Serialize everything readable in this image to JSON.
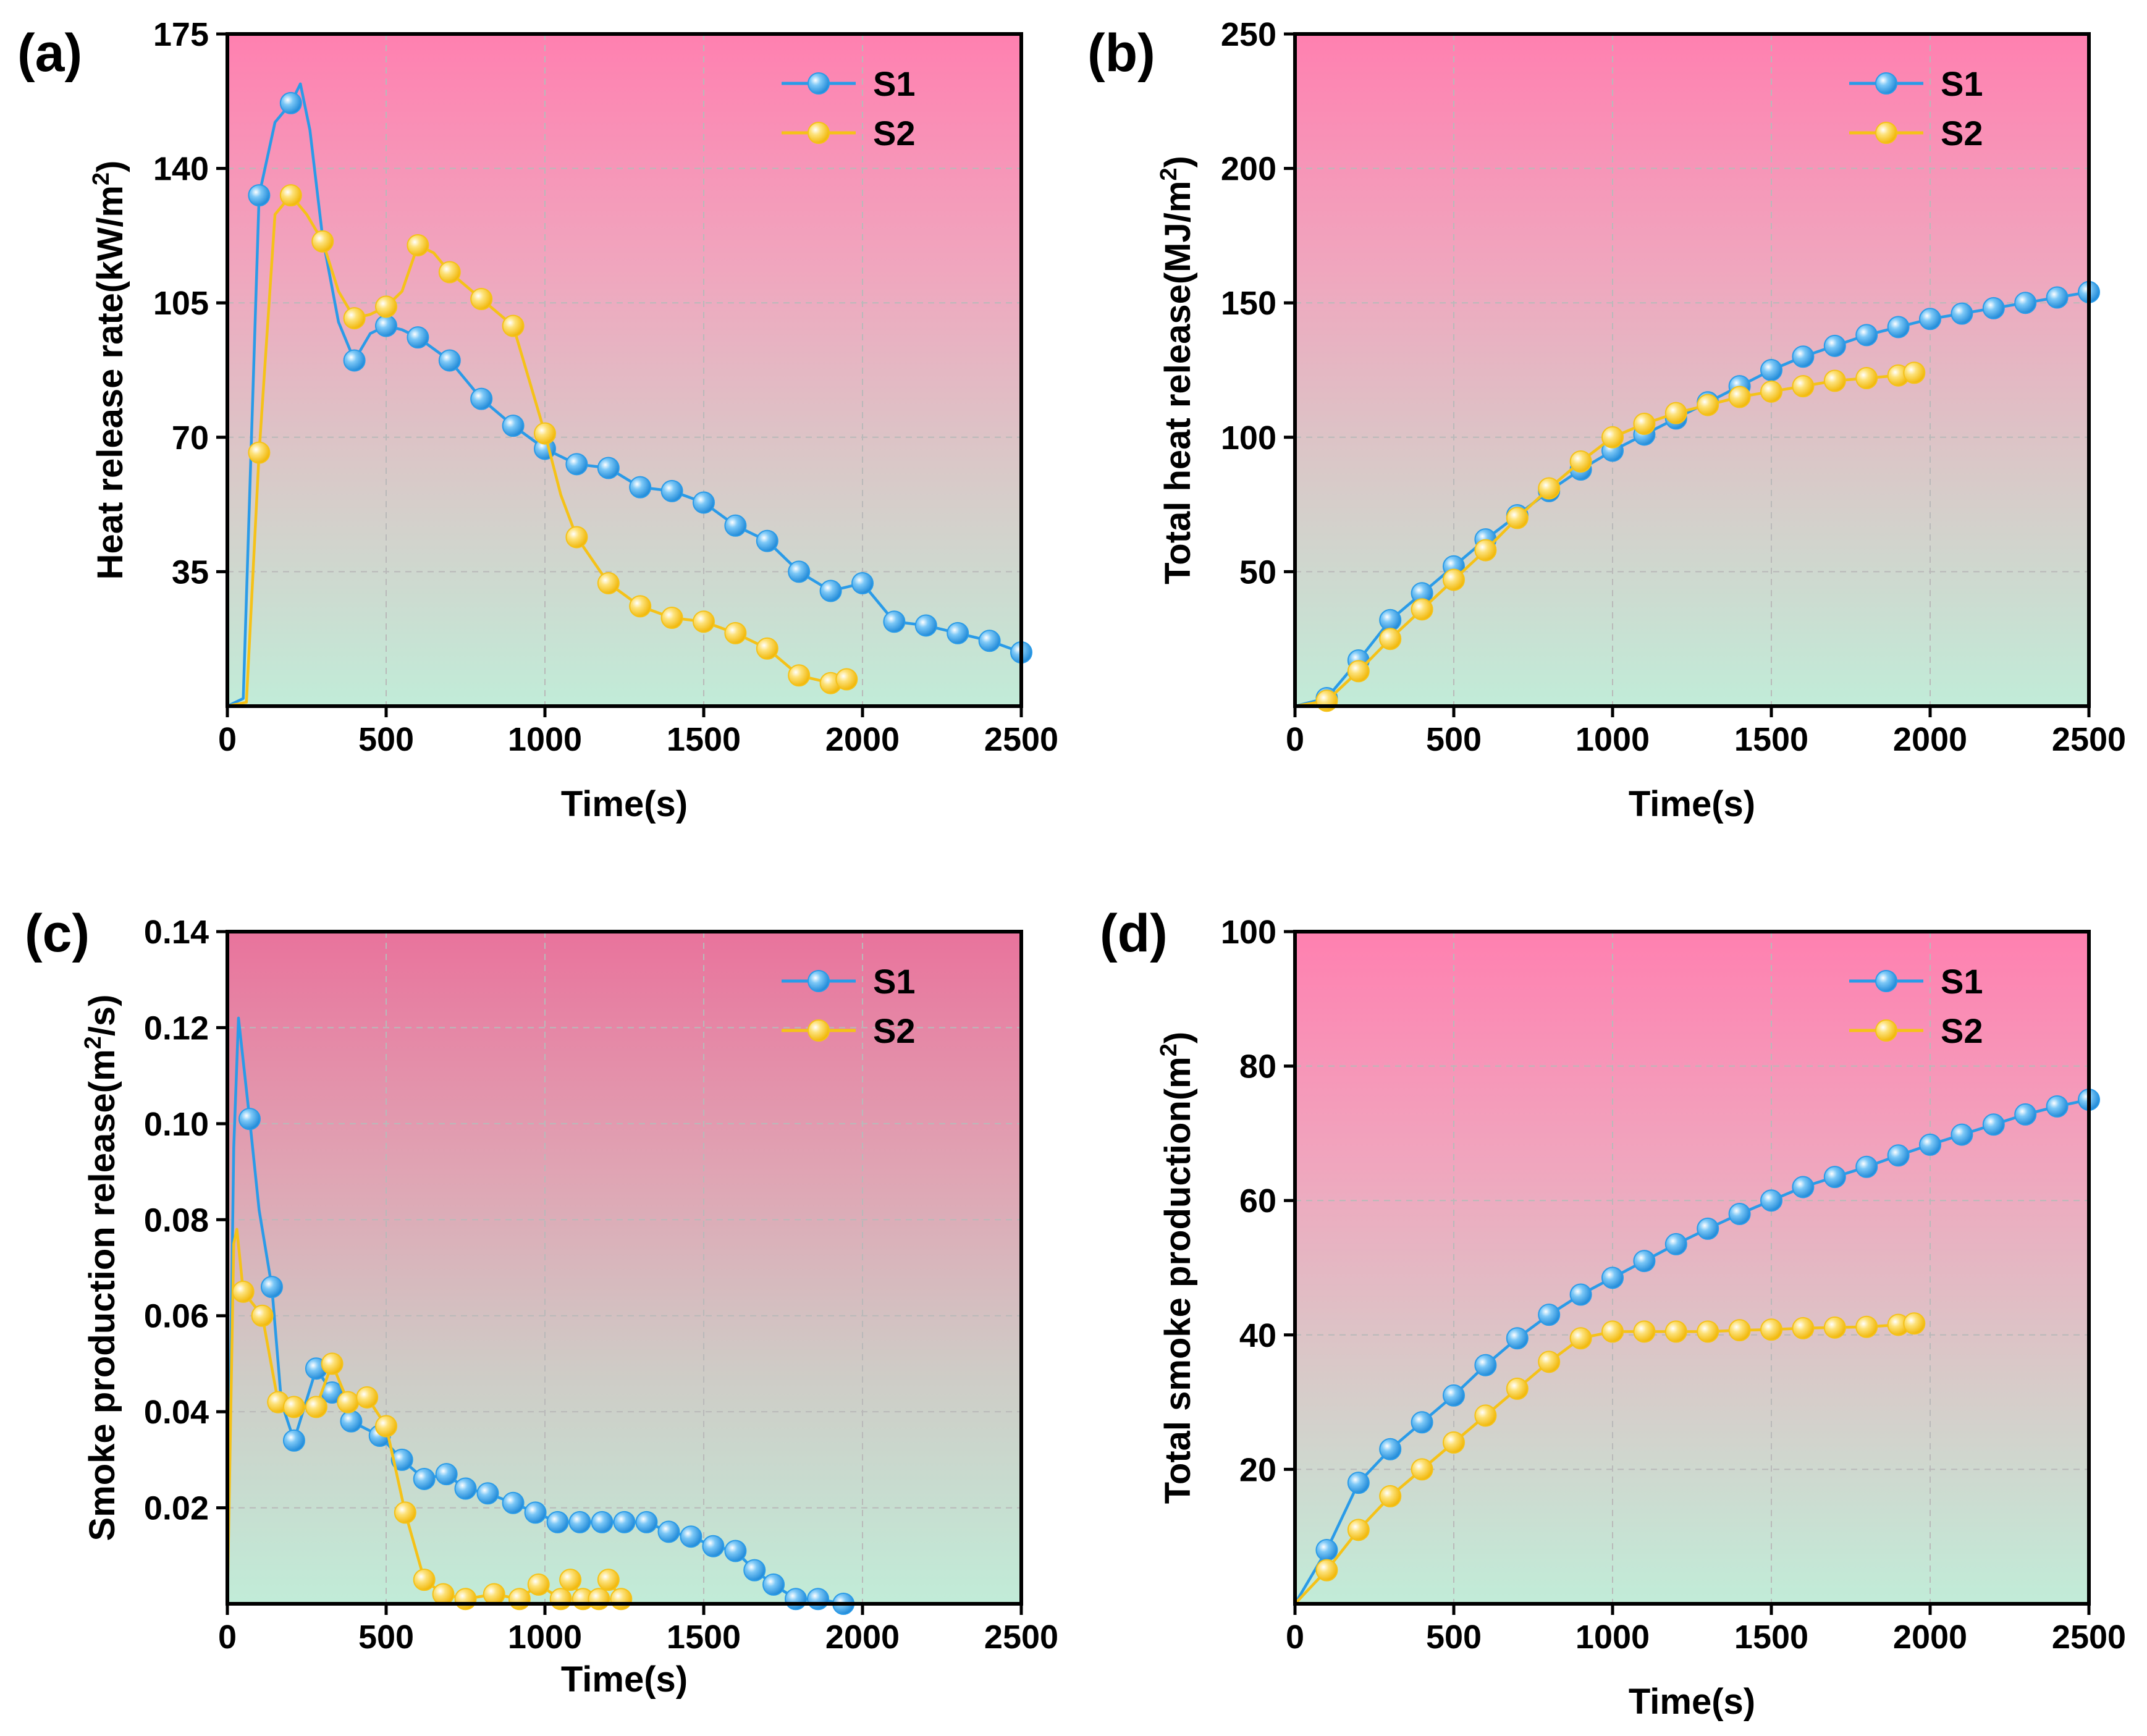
{
  "chart_data": [
    {
      "type": "line",
      "panel_label": "(a)",
      "title": "",
      "xlabel": "Time(s)",
      "ylabel": {
        "main": "Heat release rate(kW/m",
        "sup": "2",
        "close": ")"
      },
      "xlim": [
        0,
        2500
      ],
      "ylim": [
        0,
        175
      ],
      "xticks": [
        "0",
        "500",
        "1000",
        "1500",
        "2000",
        "2500"
      ],
      "yticks": [
        "35",
        "70",
        "105",
        "140",
        "175"
      ],
      "legend": "top-right",
      "series": [
        {
          "name": "S1",
          "color": "#2a9be8",
          "x": [
            0,
            50,
            100,
            150,
            200,
            230,
            260,
            300,
            350,
            400,
            450,
            500,
            550,
            600,
            700,
            800,
            900,
            1000,
            1100,
            1200,
            1300,
            1400,
            1500,
            1600,
            1700,
            1800,
            1900,
            2000,
            2100,
            2200,
            2300,
            2400,
            2500
          ],
          "y": [
            0,
            2,
            133,
            152,
            157,
            162,
            150,
            122,
            100,
            90,
            97,
            99,
            98,
            96,
            90,
            80,
            73,
            67,
            63,
            62,
            57,
            56,
            53,
            47,
            43,
            35,
            30,
            32,
            22,
            21,
            19,
            17,
            14
          ],
          "markers_x": [
            100,
            200,
            400,
            500,
            600,
            700,
            800,
            900,
            1000,
            1100,
            1200,
            1300,
            1400,
            1500,
            1600,
            1700,
            1800,
            1900,
            2000,
            2100,
            2200,
            2300,
            2400,
            2500
          ],
          "markers_y": [
            133,
            157,
            90,
            99,
            96,
            90,
            80,
            73,
            67,
            63,
            62,
            57,
            56,
            53,
            47,
            43,
            35,
            30,
            32,
            22,
            21,
            19,
            17,
            14
          ]
        },
        {
          "name": "S2",
          "color": "#f5c218",
          "x": [
            0,
            60,
            100,
            150,
            200,
            250,
            300,
            350,
            400,
            450,
            500,
            550,
            600,
            650,
            700,
            800,
            900,
            950,
            1000,
            1050,
            1100,
            1200,
            1300,
            1400,
            1500,
            1600,
            1700,
            1800,
            1900,
            1950
          ],
          "y": [
            0,
            1,
            66,
            128,
            133,
            128,
            121,
            108,
            101,
            102,
            104,
            108,
            120,
            118,
            113,
            106,
            99,
            85,
            71,
            55,
            44,
            32,
            26,
            23,
            22,
            19,
            15,
            8,
            6,
            7
          ],
          "markers_x": [
            100,
            200,
            300,
            400,
            500,
            600,
            700,
            800,
            900,
            1000,
            1100,
            1200,
            1300,
            1400,
            1500,
            1600,
            1700,
            1800,
            1900,
            1950
          ],
          "markers_y": [
            66,
            133,
            121,
            101,
            104,
            120,
            113,
            106,
            99,
            71,
            44,
            32,
            26,
            23,
            22,
            19,
            15,
            8,
            6,
            7
          ]
        }
      ]
    },
    {
      "type": "line",
      "panel_label": "(b)",
      "title": "",
      "xlabel": "Time(s)",
      "ylabel": {
        "main": "Total heat release(MJ/m",
        "sup": "2",
        "close": ")"
      },
      "xlim": [
        0,
        2500
      ],
      "ylim": [
        0,
        250
      ],
      "xticks": [
        "0",
        "500",
        "1000",
        "1500",
        "2000",
        "2500"
      ],
      "yticks": [
        "50",
        "100",
        "150",
        "200",
        "250"
      ],
      "legend": "top-right",
      "series": [
        {
          "name": "S1",
          "color": "#2a9be8",
          "x": [
            0,
            100,
            200,
            300,
            400,
            500,
            600,
            700,
            800,
            900,
            1000,
            1100,
            1200,
            1300,
            1400,
            1500,
            1600,
            1700,
            1800,
            1900,
            2000,
            2100,
            2200,
            2300,
            2400,
            2500
          ],
          "y": [
            0,
            3,
            17,
            32,
            42,
            52,
            62,
            71,
            80,
            88,
            95,
            101,
            107,
            113,
            119,
            125,
            130,
            134,
            138,
            141,
            144,
            146,
            148,
            150,
            152,
            154
          ],
          "markers_x": [
            100,
            200,
            300,
            400,
            500,
            600,
            700,
            800,
            900,
            1000,
            1100,
            1200,
            1300,
            1400,
            1500,
            1600,
            1700,
            1800,
            1900,
            2000,
            2100,
            2200,
            2300,
            2400,
            2500
          ],
          "markers_y": [
            3,
            17,
            32,
            42,
            52,
            62,
            71,
            80,
            88,
            95,
            101,
            107,
            113,
            119,
            125,
            130,
            134,
            138,
            141,
            144,
            146,
            148,
            150,
            152,
            154
          ]
        },
        {
          "name": "S2",
          "color": "#f5c218",
          "x": [
            0,
            100,
            200,
            300,
            400,
            500,
            600,
            700,
            800,
            900,
            1000,
            1100,
            1200,
            1300,
            1400,
            1500,
            1600,
            1700,
            1800,
            1900,
            1950
          ],
          "y": [
            0,
            2,
            13,
            25,
            36,
            47,
            58,
            70,
            81,
            91,
            100,
            105,
            109,
            112,
            115,
            117,
            119,
            121,
            122,
            123,
            124
          ],
          "markers_x": [
            100,
            200,
            300,
            400,
            500,
            600,
            700,
            800,
            900,
            1000,
            1100,
            1200,
            1300,
            1400,
            1500,
            1600,
            1700,
            1800,
            1900,
            1950
          ],
          "markers_y": [
            2,
            13,
            25,
            36,
            47,
            58,
            70,
            81,
            91,
            100,
            105,
            109,
            112,
            115,
            117,
            119,
            121,
            122,
            123,
            124
          ]
        }
      ]
    },
    {
      "type": "line",
      "panel_label": "(c)",
      "title": "",
      "xlabel": "Time(s)",
      "ylabel": {
        "main": "Smoke production release(m",
        "sup": "2",
        "close": "/s)"
      },
      "xlim": [
        0,
        2500
      ],
      "ylim": [
        0,
        0.14
      ],
      "xticks": [
        "0",
        "500",
        "1000",
        "1500",
        "2000",
        "2500"
      ],
      "yticks": [
        "0.02",
        "0.04",
        "0.06",
        "0.08",
        "0.10",
        "0.12",
        "0.14"
      ],
      "legend": "top-right",
      "series": [
        {
          "name": "S1",
          "color": "#2a9be8",
          "x": [
            0,
            20,
            35,
            70,
            100,
            140,
            170,
            210,
            280,
            330,
            390,
            480,
            550,
            620,
            690,
            750,
            820,
            900,
            970,
            1040,
            1110,
            1180,
            1250,
            1320,
            1390,
            1460,
            1530,
            1600,
            1660,
            1720,
            1790,
            1860,
            1940
          ],
          "y": [
            0,
            0.095,
            0.122,
            0.101,
            0.082,
            0.066,
            0.042,
            0.034,
            0.049,
            0.044,
            0.038,
            0.035,
            0.03,
            0.026,
            0.027,
            0.024,
            0.023,
            0.021,
            0.019,
            0.017,
            0.017,
            0.017,
            0.017,
            0.017,
            0.015,
            0.014,
            0.012,
            0.011,
            0.007,
            0.004,
            0.001,
            0.001,
            0.0
          ],
          "markers_x": [
            70,
            140,
            210,
            280,
            330,
            390,
            480,
            550,
            620,
            690,
            750,
            820,
            900,
            970,
            1040,
            1110,
            1180,
            1250,
            1320,
            1390,
            1460,
            1530,
            1600,
            1660,
            1720,
            1790,
            1860,
            1940
          ],
          "markers_y": [
            0.101,
            0.066,
            0.034,
            0.049,
            0.044,
            0.038,
            0.035,
            0.03,
            0.026,
            0.027,
            0.024,
            0.023,
            0.021,
            0.019,
            0.017,
            0.017,
            0.017,
            0.017,
            0.017,
            0.015,
            0.014,
            0.012,
            0.011,
            0.007,
            0.004,
            0.001,
            0.001,
            0.0
          ]
        },
        {
          "name": "S2",
          "color": "#f5c218",
          "x": [
            0,
            20,
            30,
            50,
            110,
            160,
            210,
            280,
            330,
            380,
            440,
            500,
            560,
            620,
            680,
            750,
            840,
            920,
            980,
            1050,
            1080,
            1120,
            1170,
            1200,
            1240
          ],
          "y": [
            0,
            0.075,
            0.078,
            0.065,
            0.06,
            0.042,
            0.041,
            0.041,
            0.05,
            0.042,
            0.043,
            0.037,
            0.019,
            0.005,
            0.002,
            0.001,
            0.002,
            0.001,
            0.004,
            0.001,
            0.005,
            0.001,
            0.001,
            0.005,
            0.001
          ],
          "markers_x": [
            50,
            110,
            160,
            210,
            280,
            330,
            380,
            440,
            500,
            560,
            620,
            680,
            750,
            840,
            920,
            980,
            1050,
            1080,
            1120,
            1170,
            1200,
            1240
          ],
          "markers_y": [
            0.065,
            0.06,
            0.042,
            0.041,
            0.041,
            0.05,
            0.042,
            0.043,
            0.037,
            0.019,
            0.005,
            0.002,
            0.001,
            0.002,
            0.001,
            0.004,
            0.001,
            0.005,
            0.001,
            0.001,
            0.005,
            0.001
          ]
        }
      ]
    },
    {
      "type": "line",
      "panel_label": "(d)",
      "title": "",
      "xlabel": "Time(s)",
      "ylabel": {
        "main": "Total smoke production(m",
        "sup": "2",
        "close": ")"
      },
      "xlim": [
        0,
        2500
      ],
      "ylim": [
        0,
        100
      ],
      "xticks": [
        "0",
        "500",
        "1000",
        "1500",
        "2000",
        "2500"
      ],
      "yticks": [
        "20",
        "40",
        "60",
        "80",
        "100"
      ],
      "legend": "top-right",
      "series": [
        {
          "name": "S1",
          "color": "#2a9be8",
          "x": [
            0,
            100,
            200,
            300,
            400,
            500,
            600,
            700,
            800,
            900,
            1000,
            1100,
            1200,
            1300,
            1400,
            1500,
            1600,
            1700,
            1800,
            1900,
            2000,
            2100,
            2200,
            2300,
            2400,
            2500
          ],
          "y": [
            0,
            8,
            18,
            23,
            27,
            31,
            35.5,
            39.5,
            43,
            46,
            48.5,
            51,
            53.5,
            55.8,
            58,
            60,
            62,
            63.5,
            65,
            66.7,
            68.3,
            69.8,
            71.3,
            72.8,
            74,
            75
          ],
          "markers_x": [
            100,
            200,
            300,
            400,
            500,
            600,
            700,
            800,
            900,
            1000,
            1100,
            1200,
            1300,
            1400,
            1500,
            1600,
            1700,
            1800,
            1900,
            2000,
            2100,
            2200,
            2300,
            2400,
            2500
          ],
          "markers_y": [
            8,
            18,
            23,
            27,
            31,
            35.5,
            39.5,
            43,
            46,
            48.5,
            51,
            53.5,
            55.8,
            58,
            60,
            62,
            63.5,
            65,
            66.7,
            68.3,
            69.8,
            71.3,
            72.8,
            74,
            75
          ]
        },
        {
          "name": "S2",
          "color": "#f5c218",
          "x": [
            0,
            100,
            200,
            300,
            400,
            500,
            600,
            700,
            800,
            900,
            1000,
            1100,
            1200,
            1300,
            1400,
            1500,
            1600,
            1700,
            1800,
            1900,
            1950
          ],
          "y": [
            0,
            5,
            11,
            16,
            20,
            24,
            28,
            32,
            36,
            39.5,
            40.5,
            40.5,
            40.5,
            40.5,
            40.7,
            40.8,
            41,
            41.1,
            41.2,
            41.5,
            41.7
          ],
          "markers_x": [
            100,
            200,
            300,
            400,
            500,
            600,
            700,
            800,
            900,
            1000,
            1100,
            1200,
            1300,
            1400,
            1500,
            1600,
            1700,
            1800,
            1900,
            1950
          ],
          "markers_y": [
            5,
            11,
            16,
            20,
            24,
            28,
            32,
            36,
            39.5,
            40.5,
            40.5,
            40.5,
            40.5,
            40.7,
            40.8,
            41,
            41.1,
            41.2,
            41.5,
            41.7
          ]
        }
      ]
    }
  ],
  "gradients": {
    "warm_top": [
      "#ff80b0",
      "#f0a6be",
      "#d9c9c8",
      "#c1ecd8"
    ],
    "muted_top": [
      "#e9739c",
      "#e0a3b3",
      "#cfcbc6",
      "#c1ecd8"
    ]
  }
}
